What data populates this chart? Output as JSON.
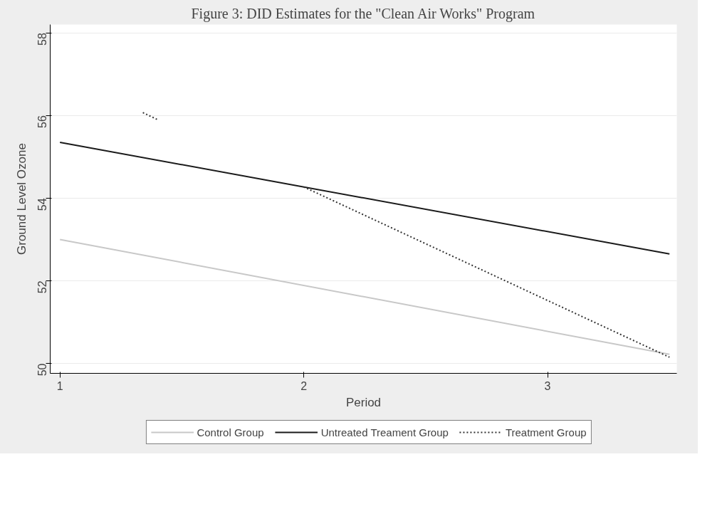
{
  "chart_data": {
    "type": "line",
    "title": "Figure 3: DID Estimates for the \"Clean Air Works\" Program",
    "xlabel": "Period",
    "ylabel": "Ground Level Ozone",
    "xlim": [
      0.96,
      3.53
    ],
    "ylim": [
      49.76,
      58.2
    ],
    "xticks": [
      1,
      2,
      3
    ],
    "yticks": [
      50,
      52,
      54,
      56,
      58
    ],
    "grid": "y",
    "legend": "bottom",
    "series": [
      {
        "name": "Control Group",
        "color": "#c8c8c8",
        "line_style": "solid",
        "x": [
          1,
          3.5
        ],
        "values": [
          53.0,
          50.22
        ]
      },
      {
        "name": "Untreated Treament Group",
        "color": "#1a1a1a",
        "line_style": "solid",
        "x": [
          1,
          3.5
        ],
        "values": [
          55.35,
          52.65
        ]
      },
      {
        "name": "Treatment Group",
        "color": "#333333",
        "line_style": "dotted",
        "x": [
          1.34,
          1.4,
          1.7,
          2,
          3.5
        ],
        "values": [
          56.07,
          55.9,
          null,
          54.27,
          50.15
        ]
      }
    ]
  }
}
